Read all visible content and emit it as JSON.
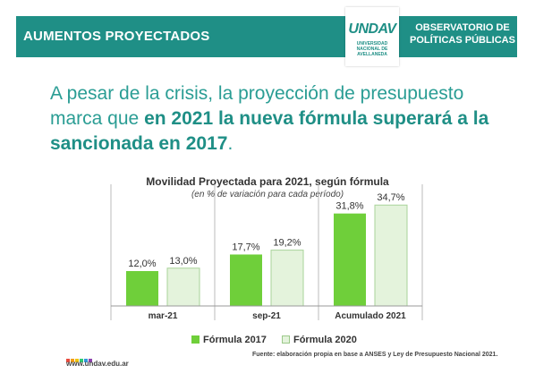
{
  "header": {
    "title": "AUMENTOS PROYECTADOS",
    "observatory_line1": "OBSERVATORIO DE",
    "observatory_line2": "POLÍTICAS PÚBLICAS"
  },
  "logo": {
    "mark": "UNDAV",
    "sub1": "UNIVERSIDAD",
    "sub2": "NACIONAL DE",
    "sub3": "AVELLANEDA"
  },
  "headline": {
    "part1": "A pesar de la crisis, la proyección de presupuesto marca que ",
    "bold": "en 2021 la nueva fórmula superará a la sancionada en 2017",
    "end": "."
  },
  "chart_data": {
    "type": "bar",
    "title": "Movilidad Proyectada para 2021, según fórmula",
    "subtitle": "(en % de variación para cada período)",
    "categories": [
      "mar-21",
      "sep-21",
      "Acumulado 2021"
    ],
    "series": [
      {
        "name": "Fórmula 2017",
        "values": [
          12.0,
          17.7,
          31.8
        ],
        "labels": [
          "12,0%",
          "17,7%",
          "31,8%"
        ],
        "color": "#6fcf3a"
      },
      {
        "name": "Fórmula 2020",
        "values": [
          13.0,
          19.2,
          34.7
        ],
        "labels": [
          "13,0%",
          "19,2%",
          "34,7%"
        ],
        "color": "#e4f3dc"
      }
    ],
    "ylim": [
      0,
      40
    ],
    "legend": "bottom"
  },
  "footer": {
    "url": "www.undav.edu.ar",
    "source": "Fuente: elaboración propia en base a ANSES y Ley de Presupuesto Nacional 2021."
  },
  "colors": {
    "brand": "#1f8f86",
    "dots": [
      "#e84b3c",
      "#f39c12",
      "#f1c40f",
      "#2ecc71",
      "#3498db",
      "#8e44ad"
    ]
  }
}
